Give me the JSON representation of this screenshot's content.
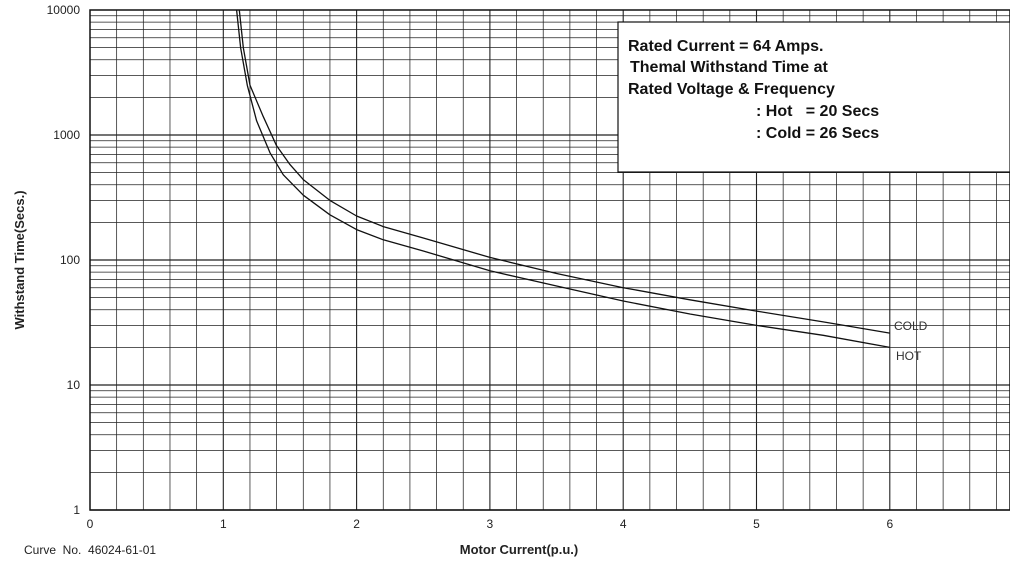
{
  "chart_data": {
    "type": "line",
    "title": "",
    "xlabel": "Motor Current(p.u.)",
    "ylabel": "Withstand Time(Secs.)",
    "xlim": [
      0,
      7
    ],
    "ylim": [
      1,
      10000
    ],
    "yscale": "log",
    "x_ticks": [
      "0",
      "1",
      "2",
      "3",
      "4",
      "5",
      "6"
    ],
    "y_ticks": [
      "1",
      "10",
      "100",
      "1000",
      "10000"
    ],
    "grid": true,
    "series": [
      {
        "name": "COLD",
        "x": [
          1.12,
          1.15,
          1.2,
          1.3,
          1.4,
          1.5,
          1.6,
          1.8,
          2.0,
          2.2,
          2.5,
          3.0,
          3.5,
          4.0,
          4.5,
          5.0,
          5.5,
          6.0
        ],
        "y": [
          10000,
          5000,
          2500,
          1400,
          820,
          580,
          440,
          300,
          225,
          185,
          150,
          105,
          78,
          60,
          48,
          39,
          32,
          26
        ]
      },
      {
        "name": "HOT",
        "x": [
          1.1,
          1.13,
          1.18,
          1.25,
          1.35,
          1.45,
          1.6,
          1.8,
          2.0,
          2.2,
          2.5,
          3.0,
          3.5,
          4.0,
          4.5,
          5.0,
          5.5,
          6.0
        ],
        "y": [
          10000,
          5000,
          2500,
          1300,
          720,
          480,
          330,
          230,
          175,
          145,
          118,
          82,
          62,
          47,
          37,
          30,
          25,
          20
        ]
      }
    ],
    "series_labels": [
      "COLD",
      "HOT"
    ],
    "annotation_lines": [
      "Rated Current = 64 Amps.",
      "Themal Withstand Time at",
      "Rated Voltage & Frequency",
      ": Hot   = 20 Secs",
      ": Cold = 26 Secs"
    ]
  },
  "footer": {
    "curve_no": "Curve  No.  46024-61-01"
  }
}
